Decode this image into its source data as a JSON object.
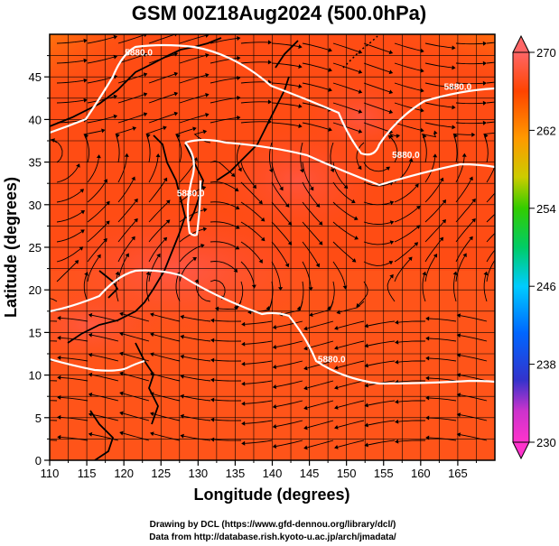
{
  "title": "GSM 00Z18Aug2024 (500.0hPa)",
  "x_axis": {
    "label": "Longitude (degrees)",
    "ticks": [
      110,
      115,
      120,
      125,
      130,
      135,
      140,
      145,
      150,
      155,
      160,
      165
    ],
    "range": [
      110,
      170
    ]
  },
  "y_axis": {
    "label": "Latitude  (degrees)",
    "ticks": [
      0,
      5,
      10,
      15,
      20,
      25,
      30,
      35,
      40,
      45
    ],
    "range": [
      0,
      50
    ]
  },
  "colorbar": {
    "ticks": [
      270,
      262,
      254,
      246,
      238,
      230
    ],
    "range": [
      230,
      270
    ],
    "colors": [
      "#ff33cc",
      "#cc33cc",
      "#3333cc",
      "#0033ff",
      "#0099ff",
      "#00ccff",
      "#00cc99",
      "#00cc33",
      "#33cc00",
      "#99cc00",
      "#cccc00",
      "#ffcc00",
      "#ff9900",
      "#ff6600",
      "#ff3300",
      "#ff6666"
    ]
  },
  "contours": [
    {
      "label": "5880.0",
      "lon": 122,
      "lat": 47.5
    },
    {
      "label": "5880.0",
      "lon": 165,
      "lat": 43.5
    },
    {
      "label": "5880.0",
      "lon": 158,
      "lat": 35.5
    },
    {
      "label": "5880.0",
      "lon": 129,
      "lat": 31
    },
    {
      "label": "5880.0",
      "lon": 148,
      "lat": 11.5
    }
  ],
  "credits": {
    "line1": "Drawing by DCL (https://www.gfd-dennou.org/library/dcl/)",
    "line2": "Data from http://database.rish.kyoto-u.ac.jp/arch/jmadata/"
  }
}
